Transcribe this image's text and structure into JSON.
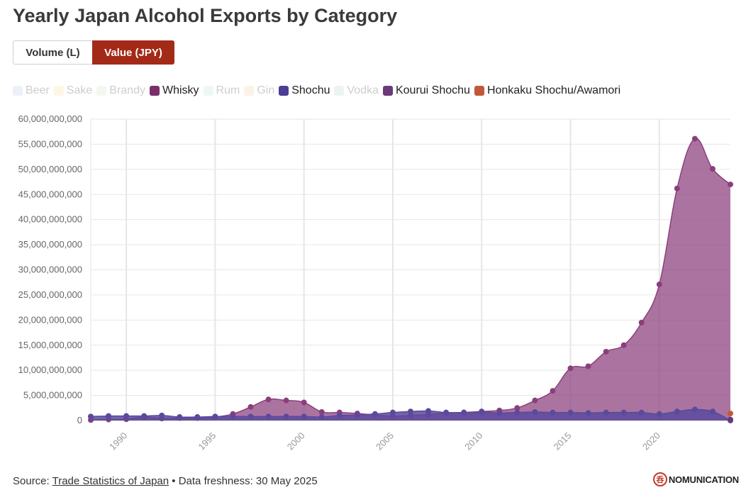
{
  "title": "Yearly Japan Alcohol Exports by Category",
  "toggle": {
    "volume_label": "Volume (L)",
    "value_label": "Value (JPY)",
    "active": "value"
  },
  "legend": [
    {
      "label": "Beer",
      "color": "#a9c4dc",
      "active": false
    },
    {
      "label": "Sake",
      "color": "#f5d98a",
      "active": false
    },
    {
      "label": "Brandy",
      "color": "#c5e0b3",
      "active": false
    },
    {
      "label": "Whisky",
      "color": "#7a2f6b",
      "active": true
    },
    {
      "label": "Rum",
      "color": "#b5dcdc",
      "active": false
    },
    {
      "label": "Gin",
      "color": "#f0c89a",
      "active": false
    },
    {
      "label": "Shochu",
      "color": "#4b3f95",
      "active": true
    },
    {
      "label": "Vodka",
      "color": "#a8d3b8",
      "active": false
    },
    {
      "label": "Kourui Shochu",
      "color": "#6a3a78",
      "active": true
    },
    {
      "label": "Honkaku Shochu/Awamori",
      "color": "#c0583a",
      "active": true
    }
  ],
  "chart_data": {
    "type": "area",
    "x": [
      1988,
      1989,
      1990,
      1991,
      1992,
      1993,
      1994,
      1995,
      1996,
      1997,
      1998,
      1999,
      2000,
      2001,
      2002,
      2003,
      2004,
      2005,
      2006,
      2007,
      2008,
      2009,
      2010,
      2011,
      2012,
      2013,
      2014,
      2015,
      2016,
      2017,
      2018,
      2019,
      2020,
      2021,
      2022,
      2023,
      2024
    ],
    "xlim": [
      1988,
      2024
    ],
    "ylim": [
      0,
      60000000000
    ],
    "yticks": [
      "0",
      "5,000,000,000",
      "10,000,000,000",
      "15,000,000,000",
      "20,000,000,000",
      "25,000,000,000",
      "30,000,000,000",
      "35,000,000,000",
      "40,000,000,000",
      "45,000,000,000",
      "50,000,000,000",
      "55,000,000,000",
      "60,000,000,000"
    ],
    "xticks": [
      "1990",
      "1995",
      "2000",
      "2005",
      "2010",
      "2015",
      "2020"
    ],
    "grid": true,
    "series": [
      {
        "name": "Whisky",
        "color": "#8a3f7c",
        "values": [
          100000000,
          200000000,
          250000000,
          700000000,
          400000000,
          500000000,
          500000000,
          700000000,
          1300000000,
          2700000000,
          4200000000,
          4000000000,
          3600000000,
          1700000000,
          1600000000,
          1400000000,
          1100000000,
          900000000,
          1000000000,
          1200000000,
          1500000000,
          1600000000,
          1800000000,
          2000000000,
          2500000000,
          4000000000,
          5900000000,
          10400000000,
          10800000000,
          13700000000,
          15000000000,
          19500000000,
          27100000000,
          46200000000,
          56100000000,
          50100000000,
          47000000000
        ]
      },
      {
        "name": "Shochu",
        "color": "#5a4a9c",
        "values": [
          800000000,
          900000000,
          900000000,
          900000000,
          1000000000,
          700000000,
          700000000,
          800000000,
          800000000,
          800000000,
          800000000,
          800000000,
          800000000,
          700000000,
          1000000000,
          1100000000,
          1300000000,
          1600000000,
          1800000000,
          1900000000,
          1600000000,
          1600000000,
          1700000000,
          1500000000,
          1600000000,
          1700000000,
          1600000000,
          1600000000,
          1500000000,
          1600000000,
          1600000000,
          1600000000,
          1300000000,
          1800000000,
          2200000000,
          1800000000,
          0
        ]
      },
      {
        "name": "Kourui Shochu",
        "color": "#6a3a78",
        "values": [
          null,
          null,
          null,
          null,
          null,
          null,
          null,
          null,
          null,
          null,
          null,
          null,
          null,
          null,
          null,
          null,
          null,
          null,
          null,
          null,
          null,
          null,
          null,
          null,
          null,
          null,
          null,
          null,
          null,
          null,
          null,
          null,
          null,
          null,
          null,
          null,
          200000000
        ]
      },
      {
        "name": "Honkaku Shochu/Awamori",
        "color": "#c0583a",
        "values": [
          null,
          null,
          null,
          null,
          null,
          null,
          null,
          null,
          null,
          null,
          null,
          null,
          null,
          null,
          null,
          null,
          null,
          null,
          null,
          null,
          null,
          null,
          null,
          null,
          null,
          null,
          null,
          null,
          null,
          null,
          null,
          null,
          null,
          null,
          null,
          null,
          1400000000
        ]
      }
    ]
  },
  "footer": {
    "source_prefix": "Source: ",
    "source_link": "Trade Statistics of Japan",
    "freshness": " • Data freshness: 30 May 2025"
  },
  "brand": {
    "logo_char": "呑",
    "name": "NOMUNICATION"
  }
}
